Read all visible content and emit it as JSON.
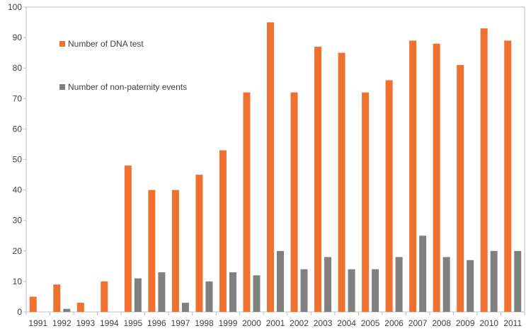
{
  "chart_data": {
    "type": "bar",
    "title": "",
    "xlabel": "",
    "ylabel": "",
    "ylim": [
      0,
      100
    ],
    "yticks": [
      "0",
      "10",
      "20",
      "30",
      "40",
      "50",
      "60",
      "70",
      "80",
      "90",
      "100"
    ],
    "categories": [
      "1991",
      "1992",
      "1993",
      "1994",
      "1995",
      "1996",
      "1997",
      "1998",
      "1999",
      "2000",
      "2001",
      "2002",
      "2003",
      "2004",
      "2005",
      "2006",
      "2007",
      "2008",
      "2009",
      "2010",
      "2011"
    ],
    "series": [
      {
        "name": "Number of DNA test",
        "color": "#F07030",
        "values": [
          5,
          9,
          3,
          10,
          48,
          40,
          40,
          45,
          53,
          72,
          95,
          72,
          87,
          85,
          72,
          76,
          89,
          88,
          81,
          93,
          89
        ]
      },
      {
        "name": "Number of non-paternity events",
        "color": "#808080",
        "values": [
          0,
          1,
          0,
          0,
          11,
          13,
          3,
          10,
          13,
          12,
          20,
          14,
          18,
          14,
          14,
          18,
          25,
          18,
          17,
          20,
          20
        ]
      }
    ],
    "legend_position": "top-left",
    "grid": false
  }
}
